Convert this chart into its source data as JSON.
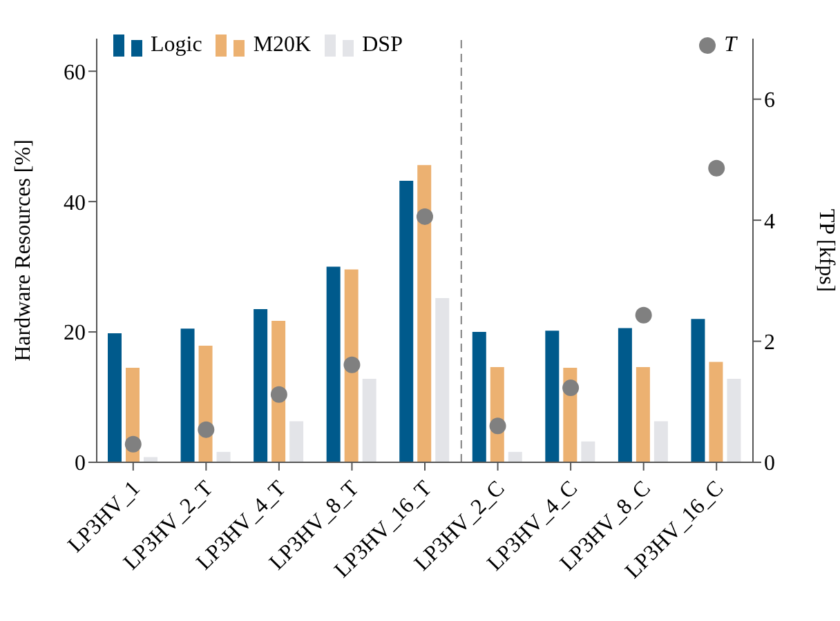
{
  "chart_data": {
    "type": "bar",
    "ylabel": "Hardware Resources [%]",
    "y2label": "TP [kfps]",
    "categories": [
      "LP3HV_1",
      "LP3HV_2_T",
      "LP3HV_4_T",
      "LP3HV_8_T",
      "LP3HV_16_T",
      "LP3HV_2_C",
      "LP3HV_4_C",
      "LP3HV_8_C",
      "LP3HV_16_C"
    ],
    "series": [
      {
        "name": "Logic",
        "color": "#005a8c",
        "values": [
          19.8,
          20.5,
          23.5,
          30,
          43.2,
          20,
          20.2,
          20.6,
          22
        ]
      },
      {
        "name": "M20K",
        "color": "#ecb171",
        "values": [
          14.5,
          17.9,
          21.7,
          29.6,
          45.6,
          14.6,
          14.5,
          14.6,
          15.4
        ]
      },
      {
        "name": "DSP",
        "color": "#e3e4e8",
        "values": [
          0.8,
          1.6,
          6.3,
          12.8,
          25.2,
          1.6,
          3.2,
          6.3,
          12.8
        ]
      },
      {
        "name": "T",
        "type": "scatter",
        "axis": "y2",
        "color": "#808080",
        "values": [
          0.3,
          0.54,
          1.12,
          1.61,
          4.06,
          0.6,
          1.23,
          2.43,
          4.86
        ]
      }
    ],
    "ylim": [
      0,
      65
    ],
    "yticks": [
      0,
      20,
      40,
      60
    ],
    "y2lim": [
      0,
      7
    ],
    "y2ticks": [
      0,
      2,
      4,
      6
    ],
    "marker": "circle",
    "legend": "top"
  }
}
